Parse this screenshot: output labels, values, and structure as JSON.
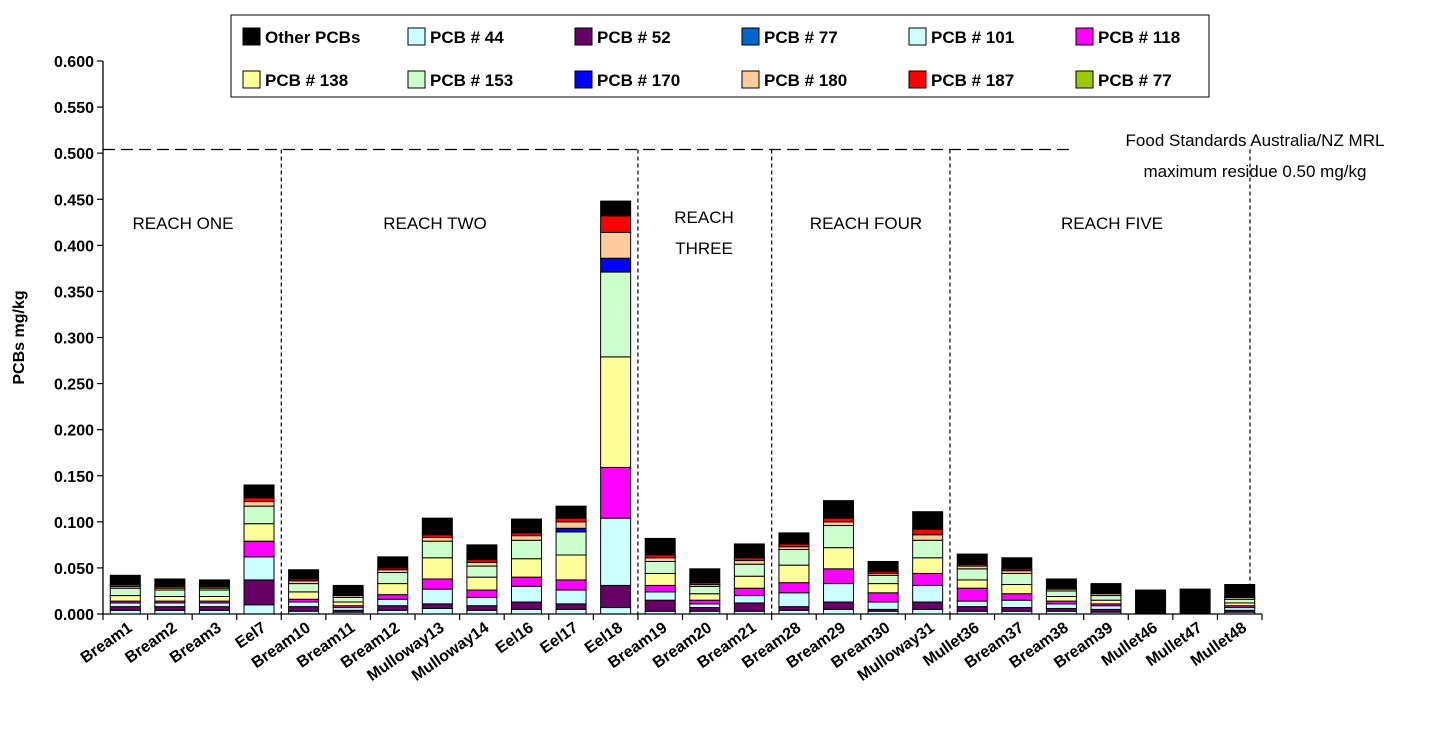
{
  "chart_data": {
    "type": "bar",
    "stacked": true,
    "ylabel": "PCBs mg/kg",
    "ylim": [
      0,
      0.6
    ],
    "yticks": [
      "0.000",
      "0.050",
      "0.100",
      "0.150",
      "0.200",
      "0.250",
      "0.300",
      "0.350",
      "0.400",
      "0.450",
      "0.500",
      "0.550",
      "0.600"
    ],
    "ytick_values": [
      0,
      0.05,
      0.1,
      0.15,
      0.2,
      0.25,
      0.3,
      0.35,
      0.4,
      0.45,
      0.5,
      0.55,
      0.6
    ],
    "categories": [
      "Bream1",
      "Bream2",
      "Bream3",
      "Eel7",
      "Bream10",
      "Bream11",
      "Bream12",
      "Mulloway13",
      "Mulloway14",
      "Eel16",
      "Eel17",
      "Eel18",
      "Bream19",
      "Bream20",
      "Bream21",
      "Bream28",
      "Bream29",
      "Bream30",
      "Mulloway31",
      "Mullet36",
      "Bream37",
      "Bream38",
      "Bream39",
      "Mullet46",
      "Mullet47",
      "Mullet48"
    ],
    "legend_position": "top",
    "series": [
      {
        "name": "PCB # 44",
        "color": "#ccffff",
        "values": [
          0.004,
          0.004,
          0.004,
          0.01,
          0.003,
          0.002,
          0.004,
          0.006,
          0.004,
          0.005,
          0.005,
          0.007,
          0.003,
          0.003,
          0.003,
          0.004,
          0.005,
          0.003,
          0.005,
          0.003,
          0.003,
          0.003,
          0.002,
          0,
          0,
          0.002
        ]
      },
      {
        "name": "PCB # 52",
        "color": "#660066",
        "values": [
          0.004,
          0.004,
          0.004,
          0.027,
          0.005,
          0.002,
          0.005,
          0.005,
          0.005,
          0.008,
          0.006,
          0.024,
          0.012,
          0.004,
          0.009,
          0.004,
          0.008,
          0.002,
          0.008,
          0.005,
          0.004,
          0.003,
          0.003,
          0,
          0,
          0.002
        ]
      },
      {
        "name": "PCB # 77",
        "color": "#0066cc",
        "values": [
          0,
          0,
          0,
          0,
          0,
          0,
          0,
          0,
          0,
          0,
          0,
          0,
          0,
          0,
          0,
          0,
          0,
          0,
          0,
          0,
          0,
          0,
          0,
          0,
          0,
          0
        ]
      },
      {
        "name": "PCB # 101",
        "color": "#ccffff",
        "values": [
          0.004,
          0.004,
          0.004,
          0.025,
          0.005,
          0.003,
          0.007,
          0.016,
          0.009,
          0.017,
          0.015,
          0.073,
          0.009,
          0.004,
          0.008,
          0.015,
          0.02,
          0.008,
          0.018,
          0.006,
          0.008,
          0.005,
          0.004,
          0,
          0,
          0.003
        ]
      },
      {
        "name": "PCB # 118",
        "color": "#ff00ff",
        "values": [
          0.002,
          0.002,
          0.002,
          0.017,
          0.003,
          0.002,
          0.005,
          0.011,
          0.008,
          0.01,
          0.011,
          0.055,
          0.007,
          0.004,
          0.008,
          0.011,
          0.016,
          0.01,
          0.013,
          0.014,
          0.007,
          0.003,
          0.002,
          0,
          0,
          0.002
        ]
      },
      {
        "name": "PCB # 138",
        "color": "#ffff99",
        "values": [
          0.006,
          0.005,
          0.005,
          0.019,
          0.008,
          0.004,
          0.012,
          0.023,
          0.014,
          0.02,
          0.027,
          0.12,
          0.013,
          0.007,
          0.013,
          0.019,
          0.023,
          0.01,
          0.017,
          0.009,
          0.01,
          0.005,
          0.004,
          0,
          0,
          0.003
        ]
      },
      {
        "name": "PCB # 153",
        "color": "#ccffcc",
        "values": [
          0.008,
          0.007,
          0.007,
          0.019,
          0.009,
          0.005,
          0.012,
          0.018,
          0.012,
          0.02,
          0.025,
          0.092,
          0.013,
          0.008,
          0.013,
          0.017,
          0.024,
          0.009,
          0.019,
          0.012,
          0.012,
          0.006,
          0.005,
          0,
          0,
          0.004
        ]
      },
      {
        "name": "PCB # 170",
        "color": "#0000ff",
        "values": [
          0,
          0,
          0,
          0,
          0,
          0,
          0,
          0,
          0,
          0,
          0.004,
          0.015,
          0,
          0,
          0,
          0,
          0,
          0,
          0,
          0,
          0,
          0,
          0,
          0,
          0,
          0
        ]
      },
      {
        "name": "PCB # 180",
        "color": "#ffcc99",
        "values": [
          0.002,
          0.002,
          0.002,
          0.005,
          0.003,
          0.002,
          0.003,
          0.004,
          0.004,
          0.005,
          0.007,
          0.028,
          0.004,
          0.002,
          0.004,
          0.003,
          0.004,
          0.002,
          0.006,
          0.003,
          0.003,
          0.002,
          0.002,
          0,
          0,
          0.002
        ]
      },
      {
        "name": "PCB # 187",
        "color": "#ff0000",
        "values": [
          0.002,
          0.002,
          0.002,
          0.004,
          0.002,
          0.001,
          0.002,
          0.003,
          0.003,
          0.003,
          0.004,
          0.018,
          0.003,
          0.002,
          0.003,
          0.003,
          0.004,
          0.002,
          0.006,
          0.002,
          0.002,
          0.001,
          0.001,
          0,
          0,
          0.001
        ]
      },
      {
        "name": "PCB # 77",
        "color": "#99cc00",
        "values": [
          0,
          0,
          0,
          0,
          0,
          0,
          0,
          0,
          0,
          0,
          0,
          0,
          0,
          0,
          0,
          0,
          0,
          0,
          0,
          0,
          0,
          0,
          0,
          0,
          0,
          0
        ]
      },
      {
        "name": "Other PCBs",
        "color": "#000000",
        "values": [
          0.01,
          0.008,
          0.007,
          0.014,
          0.01,
          0.01,
          0.012,
          0.018,
          0.016,
          0.015,
          0.013,
          0.016,
          0.018,
          0.015,
          0.015,
          0.012,
          0.019,
          0.011,
          0.019,
          0.011,
          0.012,
          0.01,
          0.01,
          0.026,
          0.027,
          0.013
        ]
      }
    ],
    "legend_order": [
      "Other PCBs",
      "PCB # 44",
      "PCB # 52",
      "PCB # 77",
      "PCB # 101",
      "PCB # 118",
      "PCB # 138",
      "PCB # 153",
      "PCB # 170",
      "PCB # 180",
      "PCB # 187",
      "PCB # 77"
    ],
    "legend_colors": [
      "#000000",
      "#ccffff",
      "#660066",
      "#0066cc",
      "#ccffff",
      "#ff00ff",
      "#ffff99",
      "#ccffcc",
      "#0000ff",
      "#ffcc99",
      "#ff0000",
      "#99cc00"
    ],
    "reference_line": {
      "y": 0.504,
      "label_line1": "Food Standards Australia/NZ MRL",
      "label_line2": "maximum residue 0.50 mg/kg"
    },
    "reaches": [
      {
        "label": "REACH ONE",
        "from": 0,
        "to": 3
      },
      {
        "label": "REACH TWO",
        "from": 4,
        "to": 11
      },
      {
        "label": "REACH",
        "label2": "THREE",
        "from": 12,
        "to": 14
      },
      {
        "label": "REACH FOUR",
        "from": 15,
        "to": 18
      },
      {
        "label": "REACH FIVE",
        "from": 19,
        "to": 25
      }
    ]
  }
}
